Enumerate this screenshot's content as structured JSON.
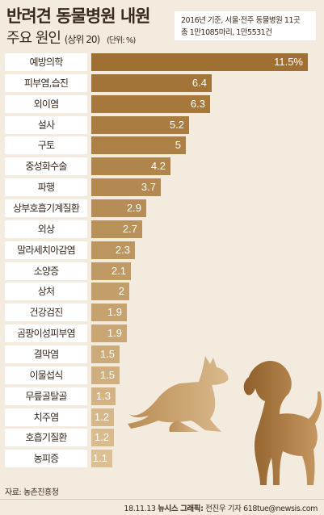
{
  "header": {
    "title_line1": "반려견 동물병원 내원",
    "title_line2_main": "주요 원인",
    "title_line2_sub": "(상위 20)",
    "title_line2_unit": "(단위: %)",
    "note_line1": "2016년 기준, 서울·전주 동물병원 11곳",
    "note_line2": "총 1만1085마리, 1만5531건"
  },
  "colors": {
    "background": "#f3ebde",
    "bar_dark": "#a07032",
    "bar_light": "#dcbf93",
    "text_dark": "#3a2a1e"
  },
  "chart_data": {
    "type": "bar",
    "orientation": "horizontal",
    "categories": [
      "예방의학",
      "피부염,습진",
      "외이염",
      "설사",
      "구토",
      "중성화수술",
      "파행",
      "상부호흡기계질환",
      "외상",
      "말라세치아감염",
      "소양증",
      "상처",
      "건강검진",
      "곰팡이성피부염",
      "결막염",
      "이물섭식",
      "무릎골탈골",
      "치주염",
      "호흡기질환",
      "농피증"
    ],
    "values": [
      11.5,
      6.4,
      6.3,
      5.2,
      5,
      4.2,
      3.7,
      2.9,
      2.7,
      2.3,
      2.1,
      2,
      1.9,
      1.9,
      1.5,
      1.5,
      1.3,
      1.2,
      1.2,
      1.1
    ],
    "value_labels": [
      "11.5%",
      "6.4",
      "6.3",
      "5.2",
      "5",
      "4.2",
      "3.7",
      "2.9",
      "2.7",
      "2.3",
      "2.1",
      "2",
      "1.9",
      "1.9",
      "1.5",
      "1.5",
      "1.3",
      "1.2",
      "1.2",
      "1.1"
    ],
    "xlim": [
      0,
      11.5
    ]
  },
  "footer": {
    "source": "자료: 농촌진흥청",
    "date": "18.11.13",
    "agency": "뉴시스 그래픽:",
    "author": "전진우 기자 618tue@newsis.com"
  },
  "illustration": {
    "dog_lying": "dog-lying-silhouette",
    "dog_sitting": "dog-sitting-silhouette"
  }
}
